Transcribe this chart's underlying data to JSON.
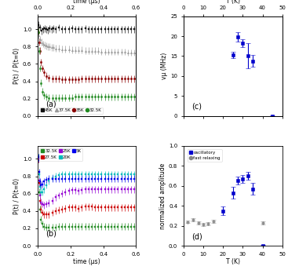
{
  "panel_a": {
    "ylabel": "P(t) / P(t=0)",
    "label": "(a)",
    "series": [
      {
        "label": "45K",
        "marker": "s",
        "color": "#111111",
        "x": [
          0.005,
          0.015,
          0.025,
          0.035,
          0.045,
          0.055,
          0.065,
          0.075,
          0.085,
          0.095,
          0.11,
          0.13,
          0.15,
          0.17,
          0.19,
          0.21,
          0.23,
          0.25,
          0.27,
          0.29,
          0.31,
          0.33,
          0.35,
          0.37,
          0.39,
          0.41,
          0.43,
          0.45,
          0.47,
          0.49,
          0.51,
          0.53,
          0.55,
          0.57,
          0.59
        ],
        "y": [
          1.05,
          1.02,
          0.98,
          1.0,
          1.01,
          1.0,
          0.99,
          1.01,
          1.0,
          1.01,
          1.0,
          1.02,
          1.0,
          1.0,
          1.0,
          1.01,
          1.0,
          1.0,
          1.0,
          1.01,
          1.0,
          1.0,
          1.0,
          1.0,
          1.0,
          1.0,
          1.0,
          1.0,
          1.0,
          1.0,
          1.0,
          1.0,
          1.0,
          1.0,
          1.0
        ],
        "yerr": [
          0.04,
          0.04,
          0.04,
          0.04,
          0.04,
          0.04,
          0.04,
          0.04,
          0.04,
          0.04,
          0.04,
          0.04,
          0.04,
          0.04,
          0.04,
          0.04,
          0.04,
          0.04,
          0.04,
          0.04,
          0.04,
          0.04,
          0.04,
          0.04,
          0.04,
          0.04,
          0.04,
          0.04,
          0.04,
          0.04,
          0.04,
          0.04,
          0.04,
          0.04,
          0.04
        ]
      },
      {
        "label": "37.5K",
        "marker": "^",
        "color": "#999999",
        "x": [
          0.005,
          0.015,
          0.025,
          0.035,
          0.045,
          0.055,
          0.065,
          0.075,
          0.085,
          0.095,
          0.11,
          0.13,
          0.15,
          0.17,
          0.19,
          0.21,
          0.23,
          0.25,
          0.27,
          0.29,
          0.31,
          0.33,
          0.35,
          0.37,
          0.39,
          0.41,
          0.43,
          0.45,
          0.47,
          0.49,
          0.51,
          0.53,
          0.55,
          0.57,
          0.59
        ],
        "y": [
          0.93,
          0.88,
          0.85,
          0.83,
          0.82,
          0.81,
          0.8,
          0.8,
          0.79,
          0.79,
          0.78,
          0.78,
          0.77,
          0.77,
          0.77,
          0.76,
          0.76,
          0.76,
          0.76,
          0.75,
          0.75,
          0.75,
          0.75,
          0.75,
          0.74,
          0.74,
          0.74,
          0.74,
          0.74,
          0.74,
          0.74,
          0.74,
          0.73,
          0.73,
          0.73
        ],
        "yerr": [
          0.04,
          0.04,
          0.04,
          0.04,
          0.04,
          0.04,
          0.04,
          0.04,
          0.04,
          0.04,
          0.04,
          0.04,
          0.04,
          0.04,
          0.04,
          0.04,
          0.04,
          0.04,
          0.04,
          0.04,
          0.04,
          0.04,
          0.04,
          0.04,
          0.04,
          0.04,
          0.04,
          0.04,
          0.04,
          0.04,
          0.04,
          0.04,
          0.04,
          0.04,
          0.04
        ]
      },
      {
        "label": "35K",
        "marker": "o",
        "color": "#8B0000",
        "x": [
          0.005,
          0.01,
          0.015,
          0.022,
          0.03,
          0.04,
          0.055,
          0.07,
          0.09,
          0.11,
          0.13,
          0.15,
          0.17,
          0.19,
          0.21,
          0.23,
          0.25,
          0.27,
          0.29,
          0.31,
          0.33,
          0.35,
          0.37,
          0.39,
          0.41,
          0.43,
          0.45,
          0.47,
          0.49,
          0.51,
          0.53,
          0.55,
          0.57,
          0.59
        ],
        "y": [
          0.97,
          0.85,
          0.75,
          0.62,
          0.55,
          0.5,
          0.46,
          0.44,
          0.43,
          0.43,
          0.43,
          0.42,
          0.42,
          0.42,
          0.42,
          0.42,
          0.42,
          0.43,
          0.43,
          0.43,
          0.43,
          0.43,
          0.43,
          0.43,
          0.43,
          0.43,
          0.43,
          0.43,
          0.43,
          0.43,
          0.43,
          0.43,
          0.43,
          0.43
        ],
        "yerr": [
          0.04,
          0.04,
          0.04,
          0.04,
          0.04,
          0.04,
          0.04,
          0.04,
          0.04,
          0.04,
          0.04,
          0.04,
          0.04,
          0.04,
          0.04,
          0.04,
          0.04,
          0.04,
          0.04,
          0.04,
          0.04,
          0.04,
          0.04,
          0.04,
          0.04,
          0.04,
          0.04,
          0.04,
          0.04,
          0.04,
          0.04,
          0.04,
          0.04,
          0.04
        ]
      },
      {
        "label": "32.5K",
        "marker": "o",
        "color": "#228B22",
        "x": [
          0.005,
          0.01,
          0.015,
          0.022,
          0.03,
          0.04,
          0.055,
          0.07,
          0.09,
          0.11,
          0.13,
          0.15,
          0.17,
          0.19,
          0.21,
          0.23,
          0.25,
          0.27,
          0.29,
          0.31,
          0.33,
          0.35,
          0.37,
          0.39,
          0.41,
          0.43,
          0.45,
          0.47,
          0.49,
          0.51,
          0.53,
          0.55,
          0.57,
          0.59
        ],
        "y": [
          0.97,
          0.75,
          0.55,
          0.38,
          0.28,
          0.24,
          0.22,
          0.21,
          0.21,
          0.21,
          0.21,
          0.21,
          0.21,
          0.21,
          0.21,
          0.22,
          0.22,
          0.22,
          0.22,
          0.22,
          0.22,
          0.22,
          0.22,
          0.22,
          0.22,
          0.22,
          0.22,
          0.22,
          0.22,
          0.22,
          0.22,
          0.22,
          0.22,
          0.22
        ],
        "yerr": [
          0.04,
          0.04,
          0.04,
          0.04,
          0.04,
          0.04,
          0.04,
          0.04,
          0.04,
          0.04,
          0.04,
          0.04,
          0.04,
          0.04,
          0.04,
          0.04,
          0.04,
          0.04,
          0.04,
          0.04,
          0.04,
          0.04,
          0.04,
          0.04,
          0.04,
          0.04,
          0.04,
          0.04,
          0.04,
          0.04,
          0.04,
          0.04,
          0.04,
          0.04
        ]
      }
    ],
    "xlim": [
      0,
      0.6
    ],
    "ylim": [
      0.0,
      1.15
    ],
    "xticks": [
      0.0,
      0.2,
      0.4,
      0.6
    ],
    "yticks": [
      0.0,
      0.2,
      0.4,
      0.6,
      0.8,
      1.0
    ]
  },
  "panel_b": {
    "ylabel": "P(t) / P(t=0)",
    "xlabel": "time (μs)",
    "label": "(b)",
    "series": [
      {
        "label": "32.5K",
        "marker": "s",
        "color": "#228B22",
        "x": [
          0.005,
          0.01,
          0.015,
          0.022,
          0.03,
          0.04,
          0.055,
          0.07,
          0.09,
          0.11,
          0.13,
          0.15,
          0.17,
          0.19,
          0.21,
          0.23,
          0.25,
          0.27,
          0.29,
          0.31,
          0.33,
          0.35,
          0.37,
          0.39,
          0.41,
          0.43,
          0.45,
          0.47,
          0.49,
          0.51,
          0.53,
          0.55,
          0.57,
          0.59
        ],
        "y": [
          1.0,
          0.62,
          0.42,
          0.3,
          0.25,
          0.22,
          0.21,
          0.21,
          0.21,
          0.21,
          0.22,
          0.22,
          0.22,
          0.22,
          0.22,
          0.22,
          0.22,
          0.22,
          0.22,
          0.22,
          0.22,
          0.22,
          0.22,
          0.22,
          0.22,
          0.22,
          0.22,
          0.22,
          0.22,
          0.22,
          0.22,
          0.22,
          0.22,
          0.22
        ],
        "yerr": [
          0.04,
          0.04,
          0.04,
          0.04,
          0.04,
          0.04,
          0.04,
          0.04,
          0.04,
          0.04,
          0.04,
          0.04,
          0.04,
          0.04,
          0.04,
          0.04,
          0.04,
          0.04,
          0.04,
          0.04,
          0.04,
          0.04,
          0.04,
          0.04,
          0.04,
          0.04,
          0.04,
          0.04,
          0.04,
          0.04,
          0.04,
          0.04,
          0.04,
          0.04
        ]
      },
      {
        "label": "27.5K",
        "marker": "s",
        "color": "#CC0000",
        "x": [
          0.005,
          0.01,
          0.015,
          0.022,
          0.03,
          0.04,
          0.055,
          0.07,
          0.09,
          0.11,
          0.13,
          0.15,
          0.17,
          0.19,
          0.21,
          0.23,
          0.25,
          0.27,
          0.29,
          0.31,
          0.33,
          0.35,
          0.37,
          0.39,
          0.41,
          0.43,
          0.45,
          0.47,
          0.49,
          0.51,
          0.53,
          0.55,
          0.57,
          0.59
        ],
        "y": [
          1.0,
          0.72,
          0.52,
          0.42,
          0.38,
          0.36,
          0.36,
          0.36,
          0.38,
          0.4,
          0.41,
          0.42,
          0.43,
          0.44,
          0.44,
          0.44,
          0.43,
          0.44,
          0.45,
          0.45,
          0.45,
          0.44,
          0.44,
          0.44,
          0.44,
          0.44,
          0.44,
          0.44,
          0.44,
          0.44,
          0.44,
          0.44,
          0.44,
          0.44
        ],
        "yerr": [
          0.04,
          0.04,
          0.04,
          0.04,
          0.04,
          0.04,
          0.04,
          0.04,
          0.04,
          0.04,
          0.04,
          0.04,
          0.04,
          0.04,
          0.04,
          0.04,
          0.04,
          0.04,
          0.04,
          0.04,
          0.04,
          0.04,
          0.04,
          0.04,
          0.04,
          0.04,
          0.04,
          0.04,
          0.04,
          0.04,
          0.04,
          0.04,
          0.04,
          0.04
        ]
      },
      {
        "label": "25K",
        "marker": "s",
        "color": "#9400D3",
        "x": [
          0.005,
          0.01,
          0.015,
          0.022,
          0.03,
          0.04,
          0.055,
          0.07,
          0.09,
          0.11,
          0.13,
          0.15,
          0.17,
          0.19,
          0.21,
          0.23,
          0.25,
          0.27,
          0.29,
          0.31,
          0.33,
          0.35,
          0.37,
          0.39,
          0.41,
          0.43,
          0.45,
          0.47,
          0.49,
          0.51,
          0.53,
          0.55,
          0.57,
          0.59
        ],
        "y": [
          1.0,
          0.75,
          0.58,
          0.5,
          0.48,
          0.47,
          0.48,
          0.49,
          0.52,
          0.56,
          0.58,
          0.6,
          0.62,
          0.63,
          0.64,
          0.64,
          0.63,
          0.64,
          0.65,
          0.65,
          0.65,
          0.65,
          0.65,
          0.65,
          0.65,
          0.65,
          0.65,
          0.65,
          0.65,
          0.65,
          0.65,
          0.65,
          0.65,
          0.65
        ],
        "yerr": [
          0.04,
          0.04,
          0.04,
          0.04,
          0.04,
          0.04,
          0.04,
          0.04,
          0.04,
          0.04,
          0.04,
          0.04,
          0.04,
          0.04,
          0.04,
          0.04,
          0.04,
          0.04,
          0.04,
          0.04,
          0.04,
          0.04,
          0.04,
          0.04,
          0.04,
          0.04,
          0.04,
          0.04,
          0.04,
          0.04,
          0.04,
          0.04,
          0.04,
          0.04
        ]
      },
      {
        "label": "20K",
        "marker": "s",
        "color": "#00BBBB",
        "x": [
          0.005,
          0.01,
          0.015,
          0.022,
          0.03,
          0.04,
          0.055,
          0.07,
          0.09,
          0.11,
          0.13,
          0.15,
          0.17,
          0.19,
          0.21,
          0.23,
          0.25,
          0.27,
          0.29,
          0.31,
          0.33,
          0.35,
          0.37,
          0.39,
          0.41,
          0.43,
          0.45,
          0.47,
          0.49,
          0.51,
          0.53,
          0.55,
          0.57,
          0.59
        ],
        "y": [
          1.02,
          0.82,
          0.68,
          0.62,
          0.62,
          0.65,
          0.7,
          0.75,
          0.78,
          0.8,
          0.81,
          0.82,
          0.82,
          0.82,
          0.82,
          0.82,
          0.82,
          0.82,
          0.82,
          0.82,
          0.82,
          0.82,
          0.82,
          0.82,
          0.82,
          0.82,
          0.82,
          0.82,
          0.82,
          0.82,
          0.82,
          0.82,
          0.82,
          0.82
        ],
        "yerr": [
          0.04,
          0.04,
          0.04,
          0.04,
          0.04,
          0.04,
          0.04,
          0.04,
          0.04,
          0.04,
          0.04,
          0.04,
          0.04,
          0.04,
          0.04,
          0.04,
          0.04,
          0.04,
          0.04,
          0.04,
          0.04,
          0.04,
          0.04,
          0.04,
          0.04,
          0.04,
          0.04,
          0.04,
          0.04,
          0.04,
          0.04,
          0.04,
          0.04,
          0.04
        ]
      },
      {
        "label": "5K",
        "marker": "s",
        "color": "#0000EE",
        "x": [
          0.005,
          0.01,
          0.015,
          0.022,
          0.03,
          0.04,
          0.055,
          0.07,
          0.09,
          0.11,
          0.13,
          0.15,
          0.17,
          0.19,
          0.21,
          0.23,
          0.25,
          0.27,
          0.29,
          0.31,
          0.33,
          0.35,
          0.37,
          0.39,
          0.41,
          0.43,
          0.45,
          0.47,
          0.49,
          0.51,
          0.53,
          0.55,
          0.57,
          0.59
        ],
        "y": [
          1.02,
          0.85,
          0.74,
          0.7,
          0.71,
          0.74,
          0.76,
          0.77,
          0.77,
          0.77,
          0.77,
          0.77,
          0.77,
          0.77,
          0.77,
          0.77,
          0.77,
          0.77,
          0.77,
          0.77,
          0.77,
          0.77,
          0.77,
          0.77,
          0.77,
          0.77,
          0.77,
          0.77,
          0.77,
          0.77,
          0.77,
          0.77,
          0.77,
          0.77
        ],
        "yerr": [
          0.04,
          0.04,
          0.04,
          0.04,
          0.04,
          0.04,
          0.04,
          0.04,
          0.04,
          0.04,
          0.04,
          0.04,
          0.04,
          0.04,
          0.04,
          0.04,
          0.04,
          0.04,
          0.04,
          0.04,
          0.04,
          0.04,
          0.04,
          0.04,
          0.04,
          0.04,
          0.04,
          0.04,
          0.04,
          0.04,
          0.04,
          0.04,
          0.04,
          0.04
        ]
      }
    ],
    "xlim": [
      0,
      0.6
    ],
    "ylim": [
      0.0,
      1.15
    ],
    "xticks": [
      0.0,
      0.2,
      0.4,
      0.6
    ],
    "yticks": [
      0.0,
      0.2,
      0.4,
      0.6,
      0.8,
      1.0
    ]
  },
  "panel_c": {
    "ylabel": "vμ (MHz)",
    "label": "(c)",
    "color": "#0000CC",
    "x": [
      25.0,
      27.5,
      30.0,
      32.5,
      35.0,
      45.0
    ],
    "y": [
      15.3,
      19.8,
      18.3,
      15.1,
      13.8,
      0.05
    ],
    "yerr": [
      0.7,
      1.2,
      1.0,
      3.2,
      1.5,
      0.05
    ],
    "xlim": [
      0,
      50
    ],
    "ylim": [
      0,
      25
    ],
    "xticks": [
      0,
      10,
      20,
      30,
      40,
      50
    ],
    "yticks": [
      0,
      5,
      10,
      15,
      20,
      25
    ]
  },
  "panel_d": {
    "xlabel": "T (K)",
    "ylabel": "normalized amplitude",
    "label": "(d)",
    "oscillatory": {
      "label": "oscillatory",
      "color": "#0000CC",
      "marker": "s",
      "x": [
        20.0,
        25.0,
        27.5,
        30.0,
        32.5,
        35.0,
        40.0
      ],
      "y": [
        0.35,
        0.53,
        0.65,
        0.67,
        0.7,
        0.57,
        0.0
      ],
      "yerr": [
        0.04,
        0.06,
        0.04,
        0.04,
        0.04,
        0.06,
        0.01
      ]
    },
    "fast_relaxing": {
      "label": "fast relaxing",
      "color": "#888888",
      "marker": "o",
      "x": [
        2.0,
        5.0,
        7.5,
        10.0,
        12.5,
        15.0,
        40.0
      ],
      "y": [
        0.24,
        0.26,
        0.23,
        0.21,
        0.22,
        0.245,
        0.23
      ],
      "yerr": [
        0.015,
        0.015,
        0.015,
        0.015,
        0.015,
        0.015,
        0.015
      ]
    },
    "xlim": [
      0,
      50
    ],
    "ylim": [
      0.0,
      1.0
    ],
    "xticks": [
      0,
      10,
      20,
      30,
      40,
      50
    ],
    "yticks": [
      0.0,
      0.2,
      0.4,
      0.6,
      0.8,
      1.0
    ]
  },
  "fig_bg": "#ffffff"
}
